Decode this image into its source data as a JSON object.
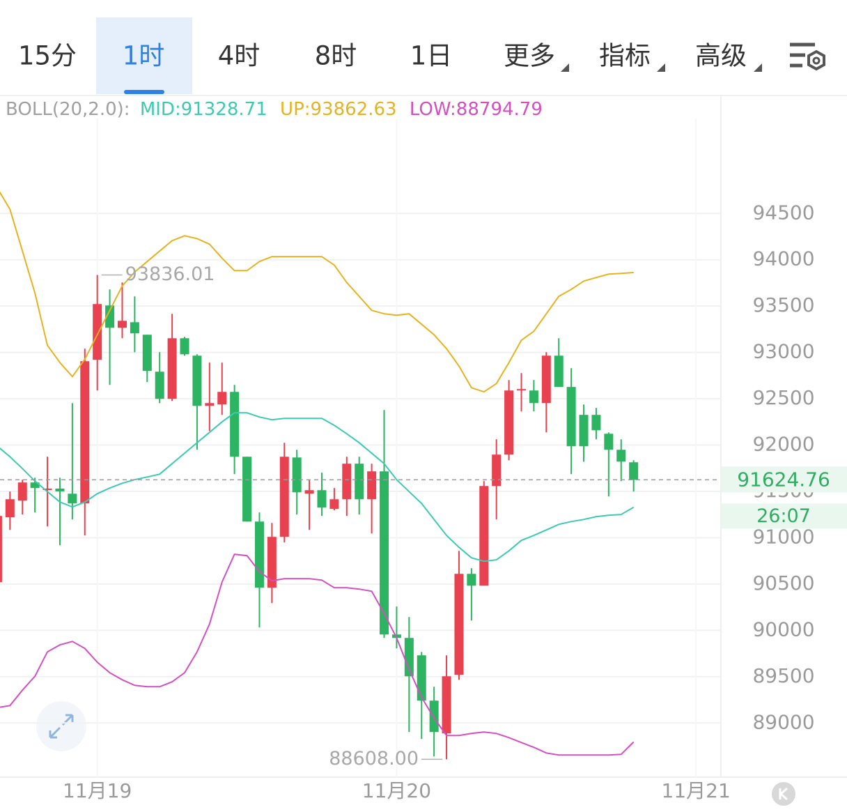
{
  "tabs": [
    "15分",
    "1时",
    "4时",
    "8时",
    "1日",
    "更多",
    "指标",
    "高级"
  ],
  "chart_data": {
    "type": "candlestick",
    "indicator": "BOLL(20,2.0):",
    "x": [
      -8,
      -7,
      -6,
      -5,
      -4,
      -3,
      -2,
      -1,
      0,
      1,
      2,
      3,
      4,
      5,
      6,
      7,
      8,
      9,
      10,
      11,
      12,
      13,
      14,
      15,
      16,
      17,
      18,
      19,
      20,
      21,
      22,
      23,
      24,
      25,
      26,
      27,
      28,
      29,
      30,
      31,
      32,
      33,
      34,
      35,
      36,
      37,
      38,
      39,
      40,
      41,
      42,
      43
    ],
    "open": [
      90520,
      91220,
      91400,
      91596,
      91515,
      91530,
      91475,
      91370,
      92920,
      93507,
      93266,
      93326,
      93191,
      92792,
      92499,
      93153,
      92965,
      92423,
      92438,
      92574,
      91874,
      91174,
      90460,
      91009,
      91866,
      91475,
      91513,
      91310,
      91415,
      91799,
      91415,
      91716,
      89955,
      89918,
      89730,
      89241,
      88887,
      89519,
      90610,
      90482,
      91558,
      91897,
      92589,
      92589,
      92453,
      92965,
      92627,
      92326,
      92326,
      92122,
      91949,
      91814
    ],
    "high": [
      91235,
      91498,
      91626,
      91648,
      91874,
      91648,
      92453,
      93040,
      93836.01,
      93680,
      93755,
      93605,
      93191,
      93003,
      93417,
      93168,
      92980,
      92890,
      92890,
      92649,
      91874,
      91272,
      91159,
      92025,
      91949,
      91626,
      91701,
      91536,
      91874,
      91874,
      91799,
      92378,
      90257,
      90144,
      89767,
      89391,
      89730,
      90858,
      90670,
      91611,
      92062,
      92702,
      92777,
      92702,
      93003,
      93153,
      92830,
      92438,
      92401,
      92137,
      92062,
      91836
    ],
    "low": [
      90520,
      91084,
      91250,
      91272,
      91122,
      90919,
      91197,
      91024,
      92589,
      92649,
      93153,
      93003,
      92679,
      92453,
      92476,
      92965,
      91949,
      92152,
      92326,
      91686,
      91174,
      90031,
      90294,
      90949,
      91250,
      91084,
      91235,
      91295,
      91235,
      91250,
      91046,
      89918,
      89805,
      88902,
      88827,
      88639,
      88608,
      89466,
      90106,
      90482,
      91197,
      91836,
      92363,
      92363,
      92137,
      92627,
      91686,
      91821,
      92062,
      91445,
      91611,
      91498
    ],
    "close": [
      91235,
      91415,
      91596,
      91536,
      91530,
      91500,
      91370,
      92905,
      93522,
      93266,
      93341,
      93206,
      92800,
      92499,
      93153,
      92980,
      92423,
      92453,
      92574,
      91874,
      91174,
      90460,
      91009,
      91874,
      91490,
      91513,
      91325,
      91415,
      91799,
      91415,
      91716,
      89955,
      89918,
      89504,
      89241,
      88902,
      89504,
      90610,
      90482,
      91558,
      91897,
      92589,
      92604,
      92453,
      92965,
      92627,
      91987,
      91987,
      92160,
      91949,
      91821,
      91624.76
    ],
    "up_color": "#e8414f",
    "down_color": "#2cb462",
    "series": [
      {
        "name": "MID:91328.71",
        "color": "#3ccab2",
        "values": [
          91987,
          91874,
          91746,
          91611,
          91498,
          91385,
          91332,
          91385,
          91475,
          91536,
          91588,
          91626,
          91656,
          91686,
          91799,
          91912,
          92025,
          92137,
          92250,
          92348,
          92348,
          92303,
          92273,
          92288,
          92288,
          92288,
          92288,
          92213,
          92122,
          92025,
          91912,
          91799,
          91626,
          91498,
          91370,
          91197,
          91024,
          90896,
          90783,
          90746,
          90761,
          90858,
          90971,
          91024,
          91084,
          91144,
          91174,
          91197,
          91227,
          91242,
          91250,
          91328.71
        ]
      },
      {
        "name": "UP:93862.63",
        "color": "#e6b320",
        "values": [
          94771,
          94545,
          94094,
          93642,
          93078,
          92890,
          92739,
          92927,
          93191,
          93454,
          93718,
          93868,
          93981,
          94094,
          94207,
          94259,
          94229,
          94169,
          94018,
          93883,
          93883,
          93981,
          94034,
          94034,
          94034,
          94034,
          94034,
          93943,
          93755,
          93605,
          93454,
          93417,
          93401,
          93417,
          93304,
          93191,
          93040,
          92852,
          92619,
          92574,
          92664,
          92890,
          93131,
          93228,
          93417,
          93605,
          93680,
          93770,
          93808,
          93845,
          93853,
          93862.63
        ]
      },
      {
        "name": "LOW:88794.79",
        "color": "#d450c0",
        "values": [
          89166,
          89188,
          89354,
          89504,
          89767,
          89843,
          89880,
          89805,
          89655,
          89542,
          89466,
          89406,
          89391,
          89391,
          89444,
          89542,
          89767,
          90068,
          90520,
          90821,
          90806,
          90633,
          90535,
          90557,
          90557,
          90557,
          90542,
          90460,
          90460,
          90445,
          90422,
          90181,
          89918,
          89579,
          89278,
          89053,
          88865,
          88865,
          88887,
          88902,
          88887,
          88842,
          88789,
          88737,
          88676,
          88654,
          88654,
          88654,
          88654,
          88654,
          88661,
          88794.79
        ]
      }
    ],
    "xlim": [
      -7.8,
      50
    ],
    "xticks": [
      {
        "value": 0,
        "label": "11月19"
      },
      {
        "value": 24,
        "label": "11月20"
      },
      {
        "value": 48,
        "label": "11月21"
      }
    ],
    "ylim": [
      88400,
      95450
    ],
    "yticks": [
      89000,
      89500,
      90000,
      90500,
      91000,
      91500,
      92000,
      92500,
      93000,
      93500,
      94000,
      94500
    ],
    "grid": true,
    "current_price": 91624.76,
    "countdown": "26:07",
    "max_label": 93836.01,
    "min_label": {
      "value": 88608,
      "label": "88608.00"
    }
  }
}
